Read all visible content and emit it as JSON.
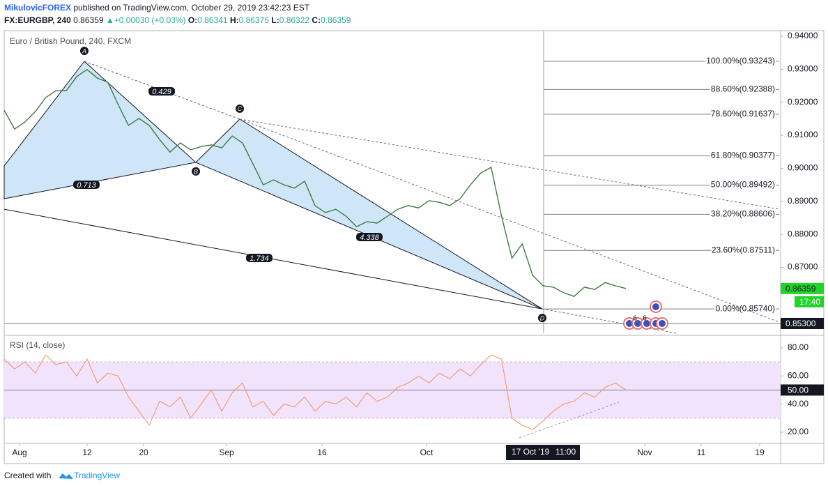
{
  "header": {
    "publisher": "MikulovicFOREX",
    "published": "published on TradingView.com, October 29, 2019 23:42:23 EST",
    "symbol": "FX:EURGBP, 240",
    "last": "0.86359",
    "arrow": "▲",
    "change": "+0.00030 (+0.03%)",
    "ohlc": [
      {
        "label": "O:",
        "value": "0.86341"
      },
      {
        "label": "H:",
        "value": "0.86375"
      },
      {
        "label": "L:",
        "value": "0.86322"
      },
      {
        "label": "C:",
        "value": "0.86359"
      }
    ]
  },
  "chart_data": [
    {
      "type": "line",
      "title": "Euro / British Pound, 240, FXCM",
      "color": "#3d7a3d",
      "values": [
        0.9176,
        0.9119,
        0.914,
        0.9172,
        0.9214,
        0.9235,
        0.9235,
        0.9278,
        0.9299,
        0.9273,
        0.9261,
        0.9193,
        0.913,
        0.9151,
        0.913,
        0.9087,
        0.9049,
        0.9077,
        0.9056,
        0.9066,
        0.9071,
        0.9062,
        0.9098,
        0.9077,
        0.9014,
        0.895,
        0.8965,
        0.895,
        0.894,
        0.8961,
        0.8887,
        0.8866,
        0.8876,
        0.8855,
        0.8823,
        0.8838,
        0.8834,
        0.8855,
        0.8876,
        0.8887,
        0.888,
        0.8902,
        0.8897,
        0.8887,
        0.8908,
        0.895,
        0.8986,
        0.9003,
        0.8855,
        0.8728,
        0.8771,
        0.8676,
        0.8644,
        0.864,
        0.8623,
        0.8612,
        0.864,
        0.8633,
        0.8654,
        0.8644,
        0.8636
      ],
      "ylim": [
        0.85004,
        0.94148
      ],
      "yticks": [
        {
          "value": 0.94,
          "label": "0.94000"
        },
        {
          "value": 0.93,
          "label": "0.93000"
        },
        {
          "value": 0.92,
          "label": "0.92000"
        },
        {
          "value": 0.91,
          "label": "0.91000"
        },
        {
          "value": 0.9,
          "label": "0.90000"
        },
        {
          "value": 0.89,
          "label": "0.89000"
        },
        {
          "value": 0.88,
          "label": "0.88000"
        },
        {
          "value": 0.87,
          "label": "0.87000"
        }
      ],
      "xticks": [
        "Aug",
        "12",
        "20",
        "Sep",
        "16",
        "Oct",
        "Nov",
        "11",
        "19"
      ],
      "crosshair_time": [
        "17 Oct '19",
        "11:00"
      ],
      "price_tags": [
        {
          "value": 0.86359,
          "label": "0.86359",
          "color": "#22d32a"
        },
        {
          "value": 0.853,
          "label": "0.85300",
          "color": "#131722"
        }
      ],
      "countdown": "17:40",
      "fib_levels": [
        {
          "value": 0.93243,
          "label": "100.00%(0.93243)"
        },
        {
          "value": 0.92388,
          "label": "88.60%(0.92388)"
        },
        {
          "value": 0.91637,
          "label": "78.60%(0.91637)"
        },
        {
          "value": 0.90377,
          "label": "61.80%(0.90377)"
        },
        {
          "value": 0.89492,
          "label": "50.00%(0.89492)"
        },
        {
          "value": 0.88606,
          "label": "38.20%(0.88606)"
        },
        {
          "value": 0.87511,
          "label": "23.60%(0.87511)"
        },
        {
          "value": 0.8574,
          "label": "0.00%(0.85740)"
        }
      ],
      "pattern": {
        "fill": "#cfe6f8",
        "edge_prices": [
          0.9007,
          0.8908,
          0.8876
        ],
        "points": [
          {
            "label": "A",
            "value": 0.9324
          },
          {
            "label": "B",
            "value": 0.9018
          },
          {
            "label": "C",
            "value": 0.9149
          },
          {
            "label": "D",
            "value": 0.8574
          }
        ],
        "ratios": [
          "0.429",
          "0.713",
          "4.338",
          "1.734"
        ]
      },
      "events": [
        "6",
        "6"
      ]
    },
    {
      "type": "line",
      "title": "RSI (14, close)",
      "color": "#f4905c",
      "values": [
        72,
        65,
        70,
        62,
        75,
        68,
        70,
        60,
        72,
        55,
        62,
        60,
        45,
        35,
        25,
        42,
        38,
        45,
        30,
        40,
        50,
        35,
        48,
        55,
        38,
        42,
        32,
        40,
        38,
        45,
        35,
        42,
        40,
        45,
        38,
        48,
        42,
        45,
        52,
        55,
        60,
        55,
        62,
        58,
        65,
        60,
        68,
        75,
        72,
        30,
        25,
        22,
        28,
        35,
        40,
        42,
        48,
        45,
        52,
        55,
        50
      ],
      "ylim": [
        14.05,
        86.9
      ],
      "yticks": [
        {
          "value": 80,
          "label": "80.00"
        },
        {
          "value": 60,
          "label": "60.00"
        },
        {
          "value": 40,
          "label": "40.00"
        },
        {
          "value": 20,
          "label": "20.00"
        }
      ],
      "band": [
        30,
        70
      ],
      "band_color": "#f1e3fb",
      "last_value": {
        "value": 50,
        "label": "50.00"
      }
    }
  ],
  "footer": {
    "text": "Created with",
    "brand": "TradingView"
  }
}
